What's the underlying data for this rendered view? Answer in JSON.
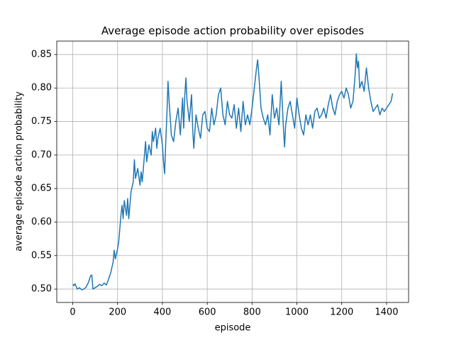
{
  "chart_data": {
    "type": "line",
    "title": "Average episode action probability over episodes",
    "x_label": "episode",
    "y_label": "average episode action probability",
    "grid": true,
    "x": [
      0,
      5,
      10,
      20,
      30,
      40,
      50,
      60,
      70,
      80,
      85,
      90,
      100,
      110,
      120,
      130,
      140,
      150,
      160,
      170,
      180,
      185,
      190,
      200,
      205,
      210,
      215,
      220,
      225,
      230,
      240,
      245,
      250,
      255,
      260,
      270,
      275,
      280,
      290,
      300,
      305,
      310,
      320,
      325,
      330,
      340,
      350,
      355,
      360,
      370,
      375,
      380,
      390,
      400,
      405,
      410,
      415,
      420,
      425,
      430,
      440,
      450,
      460,
      470,
      480,
      490,
      495,
      500,
      505,
      510,
      520,
      530,
      535,
      540,
      550,
      560,
      570,
      580,
      590,
      600,
      610,
      620,
      630,
      640,
      650,
      660,
      670,
      680,
      690,
      700,
      710,
      720,
      730,
      740,
      750,
      760,
      770,
      780,
      790,
      800,
      810,
      820,
      825,
      830,
      840,
      850,
      860,
      870,
      880,
      890,
      900,
      910,
      920,
      930,
      940,
      945,
      950,
      960,
      970,
      980,
      990,
      1000,
      1010,
      1020,
      1030,
      1040,
      1050,
      1060,
      1070,
      1080,
      1090,
      1100,
      1110,
      1120,
      1130,
      1140,
      1150,
      1160,
      1170,
      1180,
      1190,
      1200,
      1210,
      1220,
      1230,
      1240,
      1250,
      1260,
      1265,
      1270,
      1275,
      1280,
      1290,
      1300,
      1310,
      1320,
      1330,
      1340,
      1350,
      1360,
      1370,
      1380,
      1390,
      1400,
      1410,
      1420,
      1427
    ],
    "series": [
      {
        "color": "#1f77b4",
        "values": [
          0.507,
          0.505,
          0.508,
          0.5,
          0.502,
          0.499,
          0.5,
          0.503,
          0.51,
          0.52,
          0.521,
          0.5,
          0.502,
          0.504,
          0.507,
          0.505,
          0.509,
          0.506,
          0.515,
          0.525,
          0.54,
          0.558,
          0.545,
          0.56,
          0.57,
          0.59,
          0.61,
          0.625,
          0.605,
          0.632,
          0.61,
          0.635,
          0.605,
          0.625,
          0.645,
          0.66,
          0.693,
          0.665,
          0.68,
          0.655,
          0.675,
          0.66,
          0.7,
          0.72,
          0.69,
          0.715,
          0.7,
          0.735,
          0.72,
          0.74,
          0.71,
          0.725,
          0.74,
          0.715,
          0.69,
          0.672,
          0.72,
          0.76,
          0.81,
          0.78,
          0.73,
          0.72,
          0.75,
          0.77,
          0.73,
          0.785,
          0.74,
          0.79,
          0.815,
          0.78,
          0.75,
          0.79,
          0.74,
          0.71,
          0.76,
          0.74,
          0.725,
          0.76,
          0.765,
          0.74,
          0.735,
          0.77,
          0.745,
          0.76,
          0.79,
          0.8,
          0.76,
          0.745,
          0.78,
          0.76,
          0.755,
          0.775,
          0.74,
          0.77,
          0.735,
          0.78,
          0.745,
          0.76,
          0.745,
          0.77,
          0.8,
          0.83,
          0.842,
          0.82,
          0.77,
          0.755,
          0.745,
          0.76,
          0.73,
          0.79,
          0.755,
          0.77,
          0.745,
          0.81,
          0.74,
          0.712,
          0.745,
          0.77,
          0.78,
          0.76,
          0.74,
          0.785,
          0.76,
          0.74,
          0.73,
          0.76,
          0.745,
          0.76,
          0.74,
          0.765,
          0.77,
          0.755,
          0.76,
          0.77,
          0.755,
          0.775,
          0.79,
          0.77,
          0.76,
          0.78,
          0.79,
          0.795,
          0.785,
          0.8,
          0.79,
          0.77,
          0.78,
          0.82,
          0.851,
          0.83,
          0.84,
          0.8,
          0.81,
          0.795,
          0.83,
          0.8,
          0.78,
          0.765,
          0.77,
          0.775,
          0.76,
          0.77,
          0.765,
          0.77,
          0.775,
          0.78,
          0.792
        ]
      }
    ],
    "xlim": [
      -71.3,
      1498.3
    ],
    "ylim": [
      0.48,
      0.87
    ],
    "xticks": [
      0,
      200,
      400,
      600,
      800,
      1000,
      1200,
      1400
    ],
    "yticks": [
      {
        "value": 0.5,
        "label": "0.50"
      },
      0.55,
      {
        "value": 0.6,
        "label": "0.60"
      },
      0.65,
      {
        "value": 0.7,
        "label": "0.70"
      },
      0.75,
      {
        "value": 0.8,
        "label": "0.80"
      },
      0.85
    ]
  }
}
